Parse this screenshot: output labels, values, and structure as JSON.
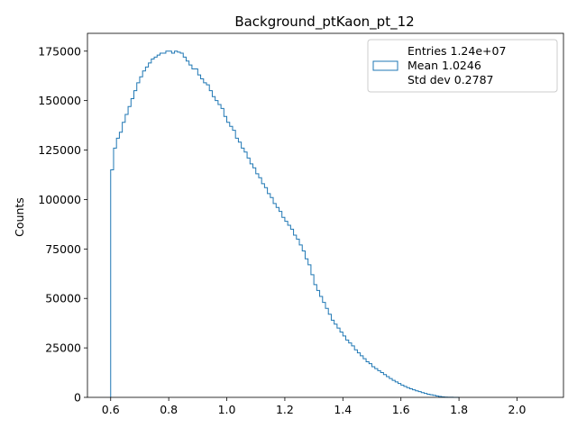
{
  "colors": {
    "histogram": "#1f77b4",
    "axes": "#000000",
    "legend_border": "#cccccc"
  },
  "chart_data": {
    "type": "histogram-step",
    "title": "Background_ptKaon_pt_12",
    "xlabel": "",
    "ylabel": "Counts",
    "xlim": [
      0.52,
      2.16
    ],
    "ylim": [
      0,
      184000
    ],
    "x_ticks": [
      0.6,
      0.8,
      1.0,
      1.2,
      1.4,
      1.6,
      1.8,
      2.0
    ],
    "x_tick_labels": [
      "0.6",
      "0.8",
      "1.0",
      "1.2",
      "1.4",
      "1.6",
      "1.8",
      "2.0"
    ],
    "y_ticks": [
      0,
      25000,
      50000,
      75000,
      100000,
      125000,
      150000,
      175000
    ],
    "y_tick_labels": [
      "0",
      "25000",
      "50000",
      "75000",
      "100000",
      "125000",
      "150000",
      "175000"
    ],
    "grid": false,
    "legend": {
      "placement": "top-right",
      "lines": [
        "Entries 1.24e+07",
        "Mean 1.0246",
        "Std dev 0.2787"
      ]
    },
    "series": [
      {
        "bin_start": 0.6,
        "bin_width": 0.01,
        "values": [
          115000,
          126000,
          131000,
          134000,
          139000,
          143000,
          147000,
          151000,
          155000,
          159000,
          162000,
          165000,
          167000,
          169000,
          171000,
          172000,
          173000,
          174000,
          174000,
          175000,
          175000,
          174000,
          175000,
          174500,
          174000,
          172000,
          170000,
          168000,
          166000,
          166000,
          163000,
          161000,
          159000,
          158000,
          155000,
          152000,
          150000,
          148000,
          146000,
          142000,
          139000,
          137000,
          135000,
          131000,
          129000,
          126000,
          124000,
          121000,
          118000,
          116000,
          113000,
          111000,
          108000,
          106000,
          103000,
          101000,
          98000,
          96000,
          94000,
          91000,
          89000,
          87000,
          85000,
          82000,
          80000,
          77000,
          74000,
          70000,
          67000,
          62000,
          57000,
          54000,
          51000,
          48000,
          45000,
          42000,
          39000,
          37000,
          35000,
          33000,
          31000,
          29000,
          27500,
          26000,
          24000,
          22500,
          21000,
          19500,
          18000,
          17000,
          15500,
          14500,
          13500,
          12500,
          11500,
          10500,
          9500,
          8600,
          7800,
          7000,
          6200,
          5500,
          4900,
          4300,
          3800,
          3300,
          2900,
          2400,
          2000,
          1600,
          1300,
          1000,
          700,
          450,
          250,
          120,
          60,
          30,
          15,
          5
        ]
      }
    ]
  }
}
